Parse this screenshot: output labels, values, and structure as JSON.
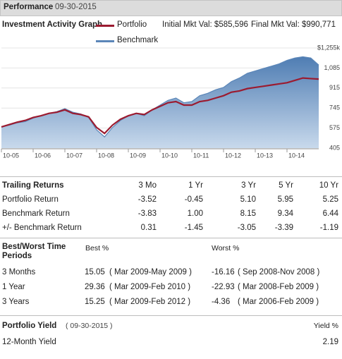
{
  "header": {
    "title": "Performance",
    "date": "09-30-2015"
  },
  "chart_data": {
    "type": "area-line",
    "title": "Investment Activity Graph",
    "annotations": [
      "Initial Mkt Val: $585,596",
      "Final Mkt Val: $990,771"
    ],
    "categories": [
      "10-05",
      null,
      null,
      null,
      "10-06",
      null,
      null,
      null,
      "10-07",
      null,
      null,
      null,
      "10-08",
      null,
      null,
      null,
      "10-09",
      null,
      null,
      null,
      "10-10",
      null,
      null,
      null,
      "10-11",
      null,
      null,
      null,
      "10-12",
      null,
      null,
      null,
      "10-13",
      null,
      null,
      null,
      "10-14",
      null,
      null,
      null,
      null
    ],
    "series": [
      {
        "name": "Portfolio",
        "color": "#9b1b30",
        "values": [
          585,
          605,
          625,
          640,
          665,
          680,
          700,
          710,
          730,
          700,
          690,
          670,
          580,
          530,
          600,
          650,
          680,
          700,
          690,
          730,
          760,
          790,
          800,
          770,
          770,
          800,
          810,
          830,
          850,
          880,
          890,
          910,
          920,
          930,
          940,
          950,
          960,
          980,
          1000,
          995,
          991
        ]
      },
      {
        "name": "Benchmark",
        "color": "#5b86b8",
        "values": [
          585,
          600,
          620,
          630,
          660,
          680,
          700,
          715,
          740,
          710,
          695,
          665,
          560,
          500,
          580,
          640,
          680,
          700,
          680,
          730,
          770,
          810,
          830,
          790,
          800,
          850,
          870,
          900,
          920,
          970,
          1000,
          1040,
          1060,
          1080,
          1100,
          1120,
          1150,
          1170,
          1180,
          1170,
          1110
        ]
      }
    ],
    "ylim": [
      405,
      1255
    ],
    "yticks": [
      405,
      575,
      745,
      915,
      {
        "value": 1085,
        "label": "1,085"
      },
      {
        "value": 1255,
        "label": "$1,255k"
      }
    ],
    "grid": true
  },
  "trailing_returns": {
    "header": [
      "Trailing Returns",
      "3 Mo",
      "1 Yr",
      "3 Yr",
      "5 Yr",
      "10 Yr"
    ],
    "rows": [
      [
        "Portfolio Return",
        "-3.52",
        "-0.45",
        "5.10",
        "5.95",
        "5.25"
      ],
      [
        "Benchmark Return",
        "-3.83",
        "1.00",
        "8.15",
        "9.34",
        "6.44"
      ],
      [
        "+/- Benchmark Return",
        "0.31",
        "-1.45",
        "-3.05",
        "-3.39",
        "-1.19"
      ]
    ]
  },
  "best_worst": {
    "header": [
      "Best/Worst Time Periods",
      "Best %",
      "Worst %"
    ],
    "rows": [
      [
        "3 Months",
        "15.05",
        "( Mar 2009-May 2009 )",
        "-16.16",
        "( Sep 2008-Nov 2008 )"
      ],
      [
        "1 Year",
        "29.36",
        "( Mar 2009-Feb 2010 )",
        "-22.93",
        "( Mar 2008-Feb 2009 )"
      ],
      [
        "3 Years",
        "15.25",
        "( Mar 2009-Feb 2012 )",
        "-4.36",
        "( Mar 2006-Feb 2009 )"
      ]
    ]
  },
  "portfolio_yield": {
    "title": "Portfolio Yield",
    "date": "( 09-30-2015 )",
    "column": "Yield %",
    "rows": [
      [
        "12-Month Yield",
        "2.19"
      ]
    ]
  }
}
